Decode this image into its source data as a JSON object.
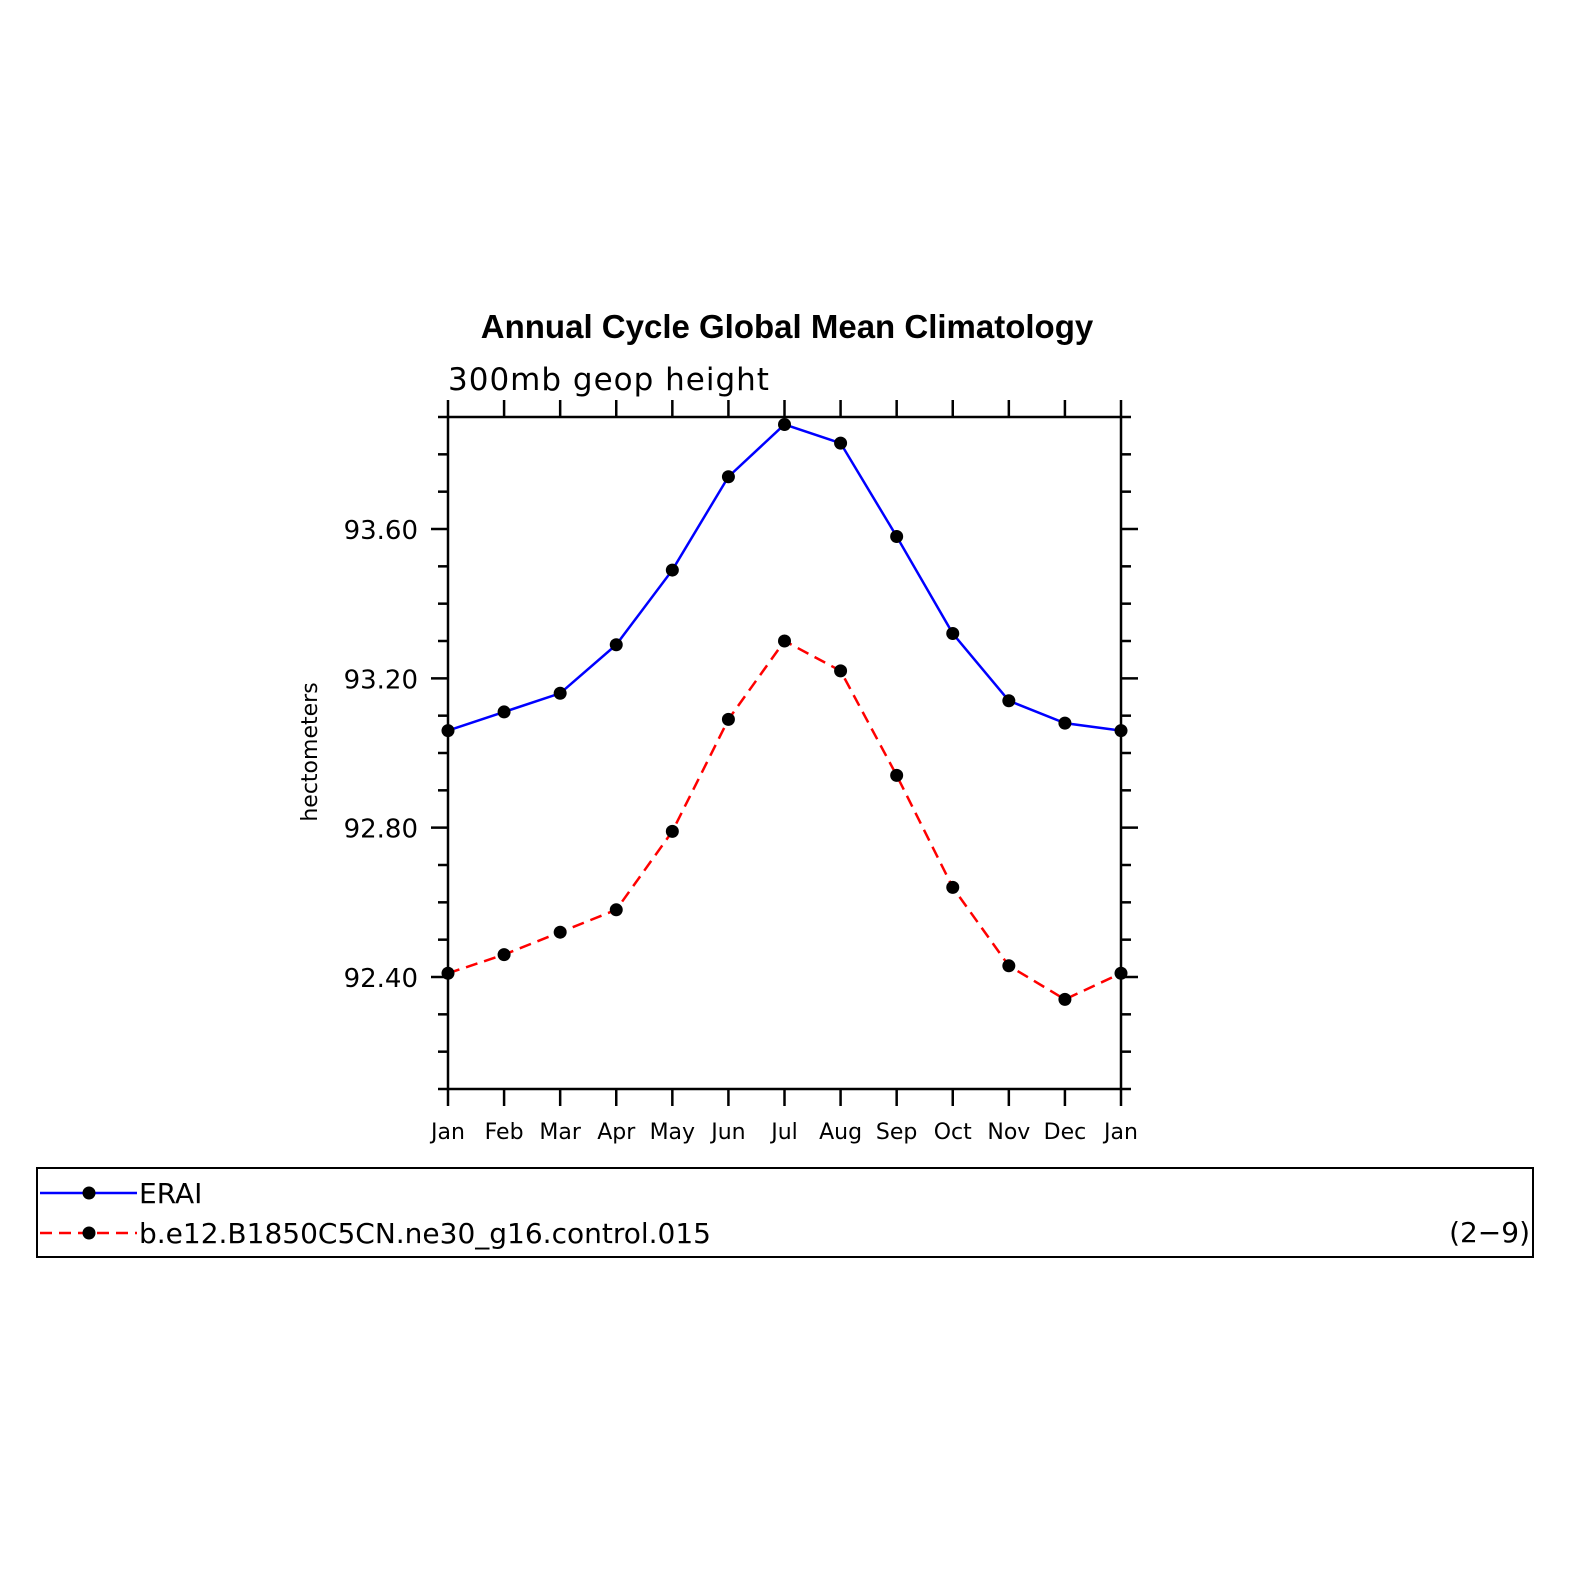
{
  "chart_data": {
    "type": "line",
    "title": "Annual Cycle Global Mean Climatology",
    "subtitle": "300mb geop height",
    "xlabel": "",
    "ylabel": "hectometers",
    "categories": [
      "Jan",
      "Feb",
      "Mar",
      "Apr",
      "May",
      "Jun",
      "Jul",
      "Aug",
      "Sep",
      "Oct",
      "Nov",
      "Dec",
      "Jan"
    ],
    "ylim": [
      92.1,
      93.9
    ],
    "yticks": [
      92.4,
      92.8,
      93.2,
      93.6
    ],
    "ytick_labels": [
      "92.40",
      "92.80",
      "93.20",
      "93.60"
    ],
    "series": [
      {
        "name": "ERAI",
        "color": "#0000ff",
        "style": "solid",
        "values": [
          93.06,
          93.11,
          93.16,
          93.29,
          93.49,
          93.74,
          93.88,
          93.83,
          93.58,
          93.32,
          93.14,
          93.08,
          93.06
        ]
      },
      {
        "name": "b.e12.B1850C5CN.ne30_g16.control.015",
        "color": "#ff0000",
        "style": "dashed",
        "values": [
          92.41,
          92.46,
          92.52,
          92.58,
          92.79,
          93.09,
          93.3,
          93.22,
          92.94,
          92.64,
          92.43,
          92.34,
          92.41
        ]
      }
    ],
    "legend_note": "(2−9)",
    "legend_position": "bottom"
  }
}
